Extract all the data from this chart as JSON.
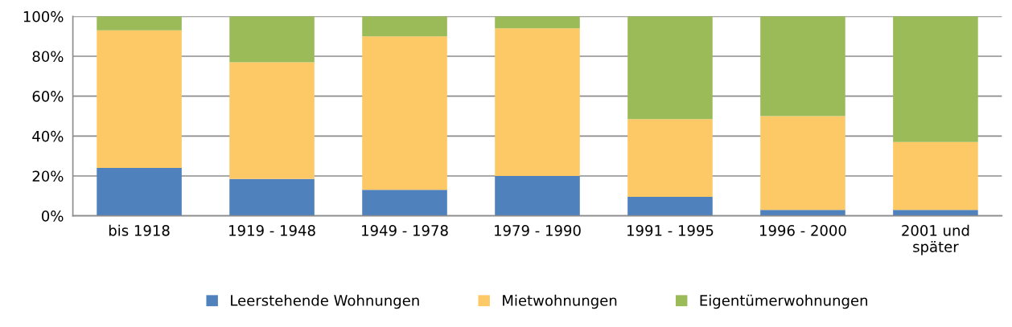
{
  "chart_data": {
    "type": "bar",
    "stacked": true,
    "categories": [
      "bis 1918",
      "1919 - 1948",
      "1949 - 1978",
      "1979 - 1990",
      "1991 - 1995",
      "1996 - 2000",
      "2001 und\nspäter"
    ],
    "series": [
      {
        "name": "Leerstehende Wohnungen",
        "color": "#4f81bd",
        "values": [
          24,
          18.5,
          13,
          20,
          9.5,
          3,
          3
        ]
      },
      {
        "name": "Mietwohnungen",
        "color": "#fdc966",
        "values": [
          69,
          58.5,
          77,
          74,
          39,
          47,
          34
        ]
      },
      {
        "name": "Eigentümerwohnungen",
        "color": "#9bbb59",
        "values": [
          7,
          23,
          10,
          6,
          51.5,
          50,
          63
        ]
      }
    ],
    "ylim": [
      0,
      100
    ],
    "yticks": [
      {
        "value": 0,
        "label": "0%"
      },
      {
        "value": 20,
        "label": "20%"
      },
      {
        "value": 40,
        "label": "40%"
      },
      {
        "value": 60,
        "label": "60%"
      },
      {
        "value": 80,
        "label": "80%"
      },
      {
        "value": 100,
        "label": "100%"
      }
    ],
    "grid": "y",
    "legend": "bottom"
  }
}
